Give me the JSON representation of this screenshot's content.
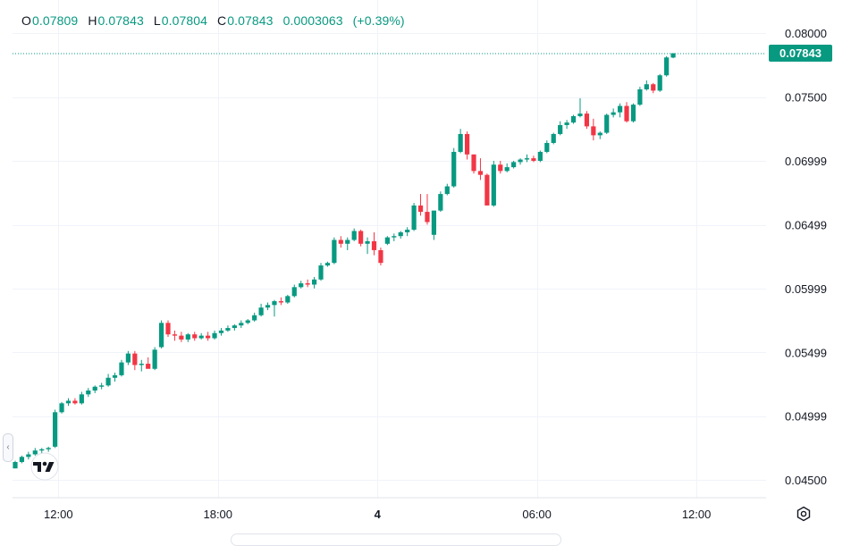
{
  "ohlc": {
    "o_label": "O",
    "o_value": "0.07809",
    "h_label": "H",
    "h_value": "0.07843",
    "l_label": "L",
    "l_value": "0.07804",
    "c_label": "C",
    "c_value": "0.07843",
    "change": "0.0003063",
    "change_pct": "(+0.39%)"
  },
  "last_price_label": "0.07843",
  "icons": {
    "logo": "tradingview-logo-icon",
    "settings": "settings-gear-icon",
    "scroll": "chevron-left-icon"
  },
  "colors": {
    "up": "#089981",
    "down": "#f23645",
    "grid": "#f0f3fa",
    "axis_text": "#131722"
  },
  "chart_data": {
    "type": "candlestick",
    "title": "",
    "ylim": [
      0.0436,
      0.0812
    ],
    "y_ticks": [
      0.045,
      0.04999,
      0.05499,
      0.05999,
      0.06499,
      0.06999,
      0.075,
      0.08
    ],
    "y_tick_labels": [
      "0.04500",
      "0.04999",
      "0.05499",
      "0.05999",
      "0.06499",
      "0.06999",
      "0.07500",
      "0.08000"
    ],
    "x_ticks": [
      {
        "index": 6.5,
        "label": "12:00",
        "bold": false
      },
      {
        "index": 30.5,
        "label": "18:00",
        "bold": false
      },
      {
        "index": 54.5,
        "label": "4",
        "bold": true
      },
      {
        "index": 78.5,
        "label": "06:00",
        "bold": false
      },
      {
        "index": 102.5,
        "label": "12:00",
        "bold": false
      }
    ],
    "last_price": 0.07843,
    "candles": [
      [
        0.0459,
        0.0465,
        0.0459,
        0.0464
      ],
      [
        0.0464,
        0.0469,
        0.0463,
        0.0468
      ],
      [
        0.0468,
        0.0472,
        0.0466,
        0.047
      ],
      [
        0.047,
        0.0475,
        0.0469,
        0.0473
      ],
      [
        0.0473,
        0.0475,
        0.047,
        0.0474
      ],
      [
        0.0474,
        0.0476,
        0.0472,
        0.0475
      ],
      [
        0.0476,
        0.0505,
        0.0475,
        0.0503
      ],
      [
        0.0503,
        0.0511,
        0.0502,
        0.051
      ],
      [
        0.051,
        0.0514,
        0.0508,
        0.0512
      ],
      [
        0.0512,
        0.0514,
        0.0509,
        0.051
      ],
      [
        0.051,
        0.0519,
        0.0509,
        0.0517
      ],
      [
        0.0517,
        0.0522,
        0.0515,
        0.052
      ],
      [
        0.052,
        0.0524,
        0.0518,
        0.0523
      ],
      [
        0.0523,
        0.0526,
        0.0521,
        0.0524
      ],
      [
        0.0524,
        0.0533,
        0.0523,
        0.053
      ],
      [
        0.053,
        0.0534,
        0.0527,
        0.0532
      ],
      [
        0.0532,
        0.0544,
        0.0531,
        0.0542
      ],
      [
        0.0542,
        0.0551,
        0.054,
        0.0549
      ],
      [
        0.0549,
        0.0551,
        0.0536,
        0.054
      ],
      [
        0.054,
        0.0544,
        0.0535,
        0.0541
      ],
      [
        0.0541,
        0.0546,
        0.0538,
        0.0537
      ],
      [
        0.0537,
        0.0554,
        0.0536,
        0.0552
      ],
      [
        0.0554,
        0.0575,
        0.0553,
        0.0573
      ],
      [
        0.0573,
        0.0575,
        0.0562,
        0.0564
      ],
      [
        0.0564,
        0.0567,
        0.0559,
        0.0563
      ],
      [
        0.0563,
        0.0566,
        0.0558,
        0.056
      ],
      [
        0.056,
        0.0565,
        0.0558,
        0.0564
      ],
      [
        0.0564,
        0.0566,
        0.0559,
        0.0561
      ],
      [
        0.0561,
        0.0565,
        0.056,
        0.0563
      ],
      [
        0.0563,
        0.0566,
        0.0559,
        0.0561
      ],
      [
        0.0561,
        0.0567,
        0.056,
        0.0565
      ],
      [
        0.0565,
        0.0569,
        0.0563,
        0.0567
      ],
      [
        0.0567,
        0.0571,
        0.0566,
        0.0569
      ],
      [
        0.0569,
        0.0572,
        0.0567,
        0.0571
      ],
      [
        0.0571,
        0.0575,
        0.0569,
        0.0573
      ],
      [
        0.0573,
        0.0576,
        0.0572,
        0.0575
      ],
      [
        0.0575,
        0.0581,
        0.0574,
        0.0579
      ],
      [
        0.0579,
        0.0588,
        0.0578,
        0.0585
      ],
      [
        0.0585,
        0.0589,
        0.0583,
        0.0587
      ],
      [
        0.0587,
        0.0591,
        0.0578,
        0.059
      ],
      [
        0.059,
        0.0593,
        0.0587,
        0.0589
      ],
      [
        0.0589,
        0.0595,
        0.0588,
        0.0594
      ],
      [
        0.0594,
        0.0603,
        0.0593,
        0.0601
      ],
      [
        0.0601,
        0.0606,
        0.06,
        0.0604
      ],
      [
        0.0604,
        0.0607,
        0.0601,
        0.0603
      ],
      [
        0.0603,
        0.0609,
        0.06,
        0.0607
      ],
      [
        0.0607,
        0.062,
        0.0606,
        0.0618
      ],
      [
        0.0618,
        0.0621,
        0.0617,
        0.062
      ],
      [
        0.062,
        0.064,
        0.0619,
        0.0638
      ],
      [
        0.0638,
        0.0641,
        0.0632,
        0.0635
      ],
      [
        0.0635,
        0.064,
        0.063,
        0.0638
      ],
      [
        0.0638,
        0.0647,
        0.0637,
        0.0645
      ],
      [
        0.0645,
        0.0646,
        0.0633,
        0.0635
      ],
      [
        0.0635,
        0.064,
        0.0627,
        0.0637
      ],
      [
        0.0637,
        0.0644,
        0.0626,
        0.063
      ],
      [
        0.063,
        0.0632,
        0.0618,
        0.062
      ],
      [
        0.0635,
        0.0641,
        0.0634,
        0.064
      ],
      [
        0.064,
        0.0643,
        0.0637,
        0.0641
      ],
      [
        0.0641,
        0.0645,
        0.0639,
        0.0644
      ],
      [
        0.0644,
        0.0648,
        0.0641,
        0.0646
      ],
      [
        0.0646,
        0.0667,
        0.0645,
        0.0665
      ],
      [
        0.0665,
        0.0674,
        0.0657,
        0.066
      ],
      [
        0.066,
        0.0674,
        0.065,
        0.0652
      ],
      [
        0.0642,
        0.0661,
        0.0638,
        0.0661
      ],
      [
        0.0661,
        0.0676,
        0.066,
        0.0674
      ],
      [
        0.0674,
        0.0682,
        0.0673,
        0.068
      ],
      [
        0.068,
        0.071,
        0.0679,
        0.0707
      ],
      [
        0.0707,
        0.0725,
        0.0706,
        0.0721
      ],
      [
        0.0721,
        0.0723,
        0.0701,
        0.0705
      ],
      [
        0.0705,
        0.0705,
        0.069,
        0.0692
      ],
      [
        0.0692,
        0.0702,
        0.0685,
        0.0689
      ],
      [
        0.0689,
        0.069,
        0.0665,
        0.0665
      ],
      [
        0.0665,
        0.07,
        0.0664,
        0.0697
      ],
      [
        0.0697,
        0.07,
        0.069,
        0.0692
      ],
      [
        0.0692,
        0.0698,
        0.0691,
        0.0695
      ],
      [
        0.0695,
        0.07,
        0.0694,
        0.0699
      ],
      [
        0.0699,
        0.0702,
        0.0697,
        0.0701
      ],
      [
        0.0701,
        0.0705,
        0.0699,
        0.0702
      ],
      [
        0.0702,
        0.0704,
        0.0699,
        0.07
      ],
      [
        0.07,
        0.0708,
        0.0699,
        0.0707
      ],
      [
        0.0707,
        0.0716,
        0.0706,
        0.0714
      ],
      [
        0.0714,
        0.0722,
        0.0713,
        0.0721
      ],
      [
        0.0721,
        0.0731,
        0.072,
        0.0728
      ],
      [
        0.0728,
        0.0732,
        0.0725,
        0.073
      ],
      [
        0.073,
        0.0736,
        0.0729,
        0.0735
      ],
      [
        0.0735,
        0.0749,
        0.0734,
        0.0737
      ],
      [
        0.0737,
        0.0739,
        0.0725,
        0.0727
      ],
      [
        0.0727,
        0.0733,
        0.0716,
        0.072
      ],
      [
        0.072,
        0.0723,
        0.0717,
        0.0722
      ],
      [
        0.0722,
        0.0737,
        0.0721,
        0.0736
      ],
      [
        0.0736,
        0.0741,
        0.0734,
        0.0738
      ],
      [
        0.0738,
        0.0745,
        0.0734,
        0.0743
      ],
      [
        0.0743,
        0.0746,
        0.073,
        0.0731
      ],
      [
        0.0731,
        0.0745,
        0.073,
        0.0744
      ],
      [
        0.0744,
        0.0758,
        0.0743,
        0.0756
      ],
      [
        0.0756,
        0.0763,
        0.0755,
        0.076
      ],
      [
        0.076,
        0.0761,
        0.0753,
        0.0755
      ],
      [
        0.0755,
        0.0768,
        0.0754,
        0.0767
      ],
      [
        0.0767,
        0.0782,
        0.0766,
        0.0781
      ],
      [
        0.07809,
        0.07843,
        0.07804,
        0.07843
      ]
    ],
    "candle_fields": [
      "open",
      "high",
      "low",
      "close"
    ]
  }
}
